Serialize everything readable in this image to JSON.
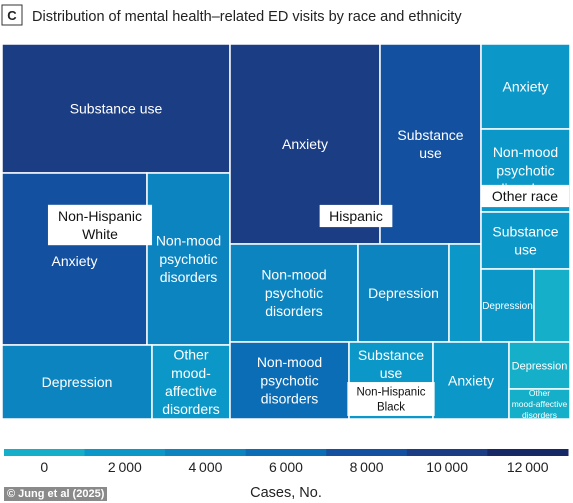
{
  "panel": {
    "letter": "C",
    "title": "Distribution of mental health–related ED visits by race and ethnicity"
  },
  "credit": "© Jung et al (2025)",
  "chart_data": {
    "type": "treemap",
    "title": "Distribution of mental health–related ED visits by race and ethnicity",
    "color_scale": {
      "label": "Cases, No.",
      "ticks": [
        0,
        2000,
        4000,
        6000,
        8000,
        10000,
        12000
      ],
      "colors": [
        "#15afc9",
        "#0b98c8",
        "#0b84c0",
        "#0b6db5",
        "#13509f",
        "#1b3d84",
        "#162865"
      ]
    },
    "groups": [
      {
        "name": "Non-Hispanic\nWhite",
        "cells": [
          {
            "label": "Substance use",
            "cases": 11000
          },
          {
            "label": "Anxiety",
            "cases": 9000
          },
          {
            "label": "Non-mood\npsychotic\ndisorders",
            "cases": 5000
          },
          {
            "label": "Depression",
            "cases": 4000
          },
          {
            "label": "Other\nmood-\naffective\ndisorders",
            "cases": 2000
          }
        ]
      },
      {
        "name": "Hispanic",
        "cells": [
          {
            "label": "Anxiety",
            "cases": 11000
          },
          {
            "label": "Substance\nuse",
            "cases": 8000
          },
          {
            "label": "Non-mood\npsychotic\ndisorders",
            "cases": 5000
          },
          {
            "label": "Depression",
            "cases": 4000
          },
          {
            "label": "",
            "cases": 2000
          }
        ]
      },
      {
        "name": "Other race",
        "cells": [
          {
            "label": "Anxiety",
            "cases": 3000
          },
          {
            "label": "Non-mood\npsychotic\ndisorders",
            "cases": 2000
          },
          {
            "label": "Substance\nuse",
            "cases": 3000
          },
          {
            "label": "Depression",
            "cases": 2000
          },
          {
            "label": "",
            "cases": 1000
          }
        ]
      },
      {
        "name": "Non-Hispanic\nBlack",
        "cells": [
          {
            "label": "Non-mood\npsychotic\ndisorders",
            "cases": 6000
          },
          {
            "label": "Substance\nuse",
            "cases": 3000
          },
          {
            "label": "Anxiety",
            "cases": 2000
          },
          {
            "label": "Depression",
            "cases": 1000
          },
          {
            "label": "Other\nmood-affective\ndisorders",
            "cases": 1000
          }
        ]
      }
    ]
  }
}
